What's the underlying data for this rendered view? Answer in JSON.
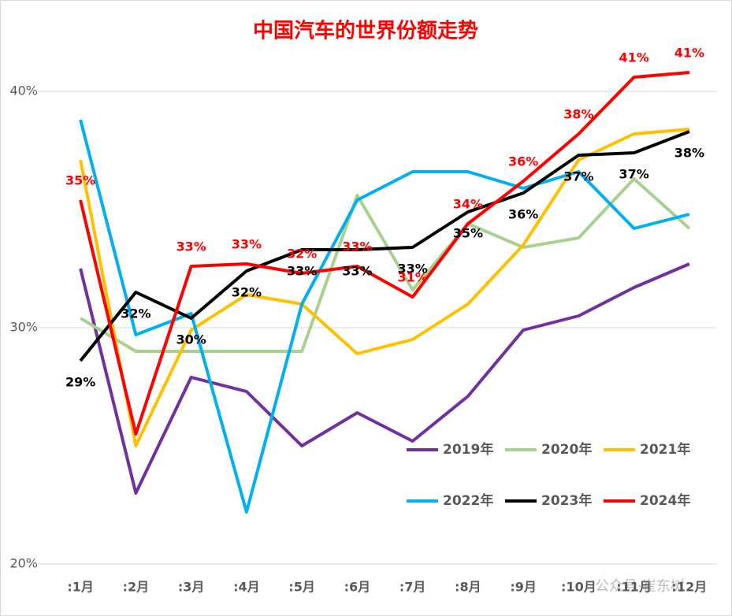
{
  "chart_data": {
    "type": "line",
    "title": "中国汽车的世界份额走势",
    "categories": [
      ":1月",
      ":2月",
      ":3月",
      ":4月",
      ":5月",
      ":6月",
      ":7月",
      ":8月",
      ":9月",
      ":10月",
      ":11月",
      ":12月"
    ],
    "ylim": [
      20,
      40
    ],
    "yticks": [
      {
        "value": 20,
        "label": "20%"
      },
      {
        "value": 30,
        "label": "30%"
      },
      {
        "value": 40,
        "label": "40%"
      }
    ],
    "grid": true,
    "legend": "lower right",
    "watermark": "公众号·崔东树",
    "series": [
      {
        "name": "2019年",
        "color": "#7030a0",
        "values": [
          32.5,
          23.0,
          27.9,
          27.3,
          25.0,
          26.4,
          25.2,
          27.1,
          29.9,
          30.5,
          31.7,
          32.7
        ]
      },
      {
        "name": "2020年",
        "color": "#a9d18e",
        "values": [
          30.4,
          29.0,
          29.0,
          29.0,
          29.0,
          35.6,
          31.6,
          34.4,
          33.4,
          33.8,
          36.3,
          34.2
        ]
      },
      {
        "name": "2021年",
        "color": "#ffc000",
        "values": [
          37.1,
          25.0,
          29.9,
          31.4,
          31.0,
          28.9,
          29.5,
          31.0,
          33.5,
          37.1,
          38.2,
          38.4
        ]
      },
      {
        "name": "2022年",
        "color": "#00b0f0",
        "values": [
          38.8,
          29.7,
          30.6,
          22.2,
          31.0,
          35.4,
          36.6,
          36.6,
          35.9,
          36.6,
          34.2,
          34.8
        ]
      },
      {
        "name": "2023年",
        "color": "#000000",
        "values": [
          28.6,
          31.5,
          30.4,
          32.4,
          33.3,
          33.3,
          33.4,
          34.9,
          35.7,
          37.3,
          37.4,
          38.3
        ],
        "value_labels": [
          "29%",
          "32%",
          "30%",
          "32%",
          "33%",
          "33%",
          "33%",
          "35%",
          "36%",
          "37%",
          "37%",
          "38%"
        ],
        "label_position": "below"
      },
      {
        "name": "2024年",
        "color": "#ff0000",
        "values": [
          35.4,
          25.5,
          32.6,
          32.7,
          32.3,
          32.6,
          31.3,
          34.4,
          36.2,
          38.2,
          40.6,
          40.8
        ],
        "value_labels": [
          "35%",
          null,
          "33%",
          "33%",
          "32%",
          "33%",
          "31%",
          "34%",
          "36%",
          "38%",
          "41%",
          "41%"
        ],
        "label_position": "above"
      }
    ]
  }
}
